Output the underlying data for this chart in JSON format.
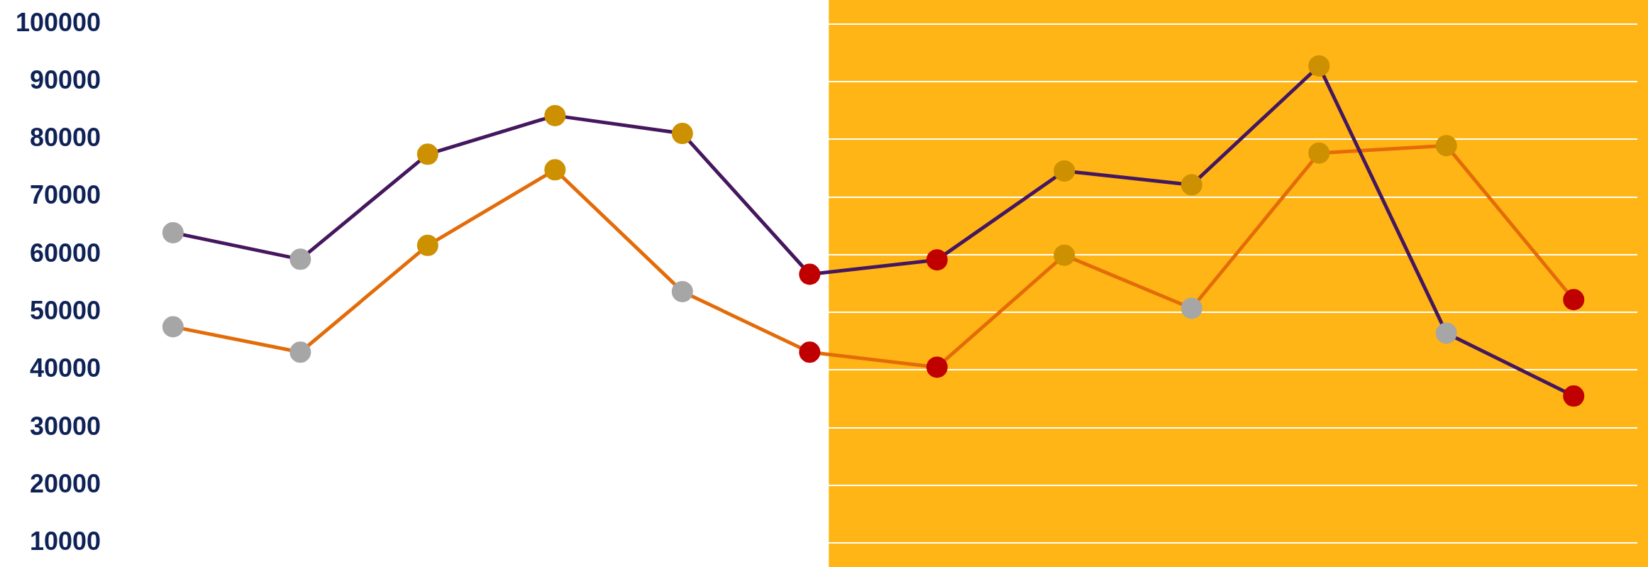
{
  "chart_data": {
    "type": "line",
    "categories": [
      null,
      null,
      null,
      null,
      null,
      null,
      null,
      null,
      null,
      null,
      null,
      null
    ],
    "series": [
      {
        "color": "#45175e",
        "values": [
          63800,
          59200,
          77400,
          84100,
          81000,
          56600,
          59100,
          74500,
          72100,
          92700,
          46400,
          35500
        ],
        "colors": [
          "#a6a6a6",
          "#a6a6a6",
          "#cc9000",
          "#cc9000",
          "#cc9000",
          "#c00000",
          "#c00000",
          "#cc9000",
          "#cc9000",
          "#cc9000",
          "#a6a6a6",
          "#c00000"
        ]
      },
      {
        "color": "#e36c09",
        "values": [
          47500,
          43100,
          61600,
          74700,
          53600,
          43100,
          40500,
          59900,
          50700,
          77600,
          78900,
          52200
        ],
        "colors": [
          "#a6a6a6",
          "#a6a6a6",
          "#cc9000",
          "#cc9000",
          "#a6a6a6",
          "#c00000",
          "#c00000",
          "#cc9000",
          "#a6a6a6",
          "#cc9000",
          "#cc9000",
          "#c00000"
        ]
      }
    ],
    "ylim": [
      10000,
      100000
    ],
    "yticks": [
      10000,
      20000,
      30000,
      40000,
      50000,
      60000,
      70000,
      80000,
      90000,
      100000
    ],
    "grid": "y",
    "legend": false,
    "tick_labels": "y",
    "marker": "circle",
    "line_style": "solid"
  }
}
